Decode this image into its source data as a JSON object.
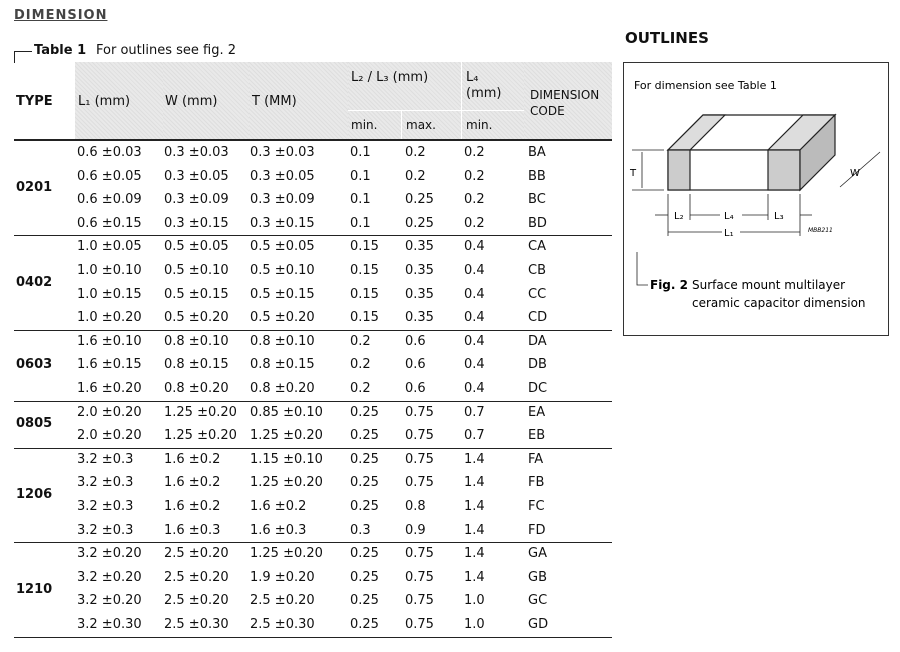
{
  "heading": "DIMENSION",
  "table": {
    "label": "Table 1",
    "caption": "For outlines see fig. 2",
    "header": {
      "type": "TYPE",
      "l1": "L₁ (mm)",
      "w": "W (mm)",
      "t": "T (MM)",
      "l2l3": "L₂ / L₃ (mm)",
      "l4": "L₄ (mm)",
      "code": "DIMENSION CODE",
      "min": "min.",
      "max": "max.",
      "l4min": "min."
    },
    "groups": [
      {
        "type": "0201",
        "rows": [
          [
            "0.6 ±0.03",
            "0.3 ±0.03",
            "0.3 ±0.03",
            "0.1",
            "0.2",
            "0.2",
            "BA"
          ],
          [
            "0.6 ±0.05",
            "0.3 ±0.05",
            "0.3 ±0.05",
            "0.1",
            "0.2",
            "0.2",
            "BB"
          ],
          [
            "0.6 ±0.09",
            "0.3 ±0.09",
            "0.3 ±0.09",
            "0.1",
            "0.25",
            "0.2",
            "BC"
          ],
          [
            "0.6 ±0.15",
            "0.3 ±0.15",
            "0.3 ±0.15",
            "0.1",
            "0.25",
            "0.2",
            "BD"
          ]
        ]
      },
      {
        "type": "0402",
        "rows": [
          [
            "1.0 ±0.05",
            "0.5 ±0.05",
            "0.5 ±0.05",
            "0.15",
            "0.35",
            "0.4",
            "CA"
          ],
          [
            "1.0 ±0.10",
            "0.5 ±0.10",
            "0.5 ±0.10",
            "0.15",
            "0.35",
            "0.4",
            "CB"
          ],
          [
            "1.0 ±0.15",
            "0.5 ±0.15",
            "0.5 ±0.15",
            "0.15",
            "0.35",
            "0.4",
            "CC"
          ],
          [
            "1.0 ±0.20",
            "0.5 ±0.20",
            "0.5 ±0.20",
            "0.15",
            "0.35",
            "0.4",
            "CD"
          ]
        ]
      },
      {
        "type": "0603",
        "rows": [
          [
            "1.6 ±0.10",
            "0.8 ±0.10",
            "0.8 ±0.10",
            "0.2",
            "0.6",
            "0.4",
            "DA"
          ],
          [
            "1.6 ±0.15",
            "0.8 ±0.15",
            "0.8 ±0.15",
            "0.2",
            "0.6",
            "0.4",
            "DB"
          ],
          [
            "1.6 ±0.20",
            "0.8 ±0.20",
            "0.8 ±0.20",
            "0.2",
            "0.6",
            "0.4",
            "DC"
          ]
        ]
      },
      {
        "type": "0805",
        "rows": [
          [
            "2.0 ±0.20",
            "1.25 ±0.20",
            "0.85 ±0.10",
            "0.25",
            "0.75",
            "0.7",
            "EA"
          ],
          [
            "2.0 ±0.20",
            "1.25 ±0.20",
            "1.25 ±0.20",
            "0.25",
            "0.75",
            "0.7",
            "EB"
          ]
        ]
      },
      {
        "type": "1206",
        "rows": [
          [
            "3.2 ±0.3",
            "1.6 ±0.2",
            "1.15 ±0.10",
            "0.25",
            "0.75",
            "1.4",
            "FA"
          ],
          [
            "3.2 ±0.3",
            "1.6 ±0.2",
            "1.25 ±0.20",
            "0.25",
            "0.75",
            "1.4",
            "FB"
          ],
          [
            "3.2 ±0.3",
            "1.6 ±0.2",
            "1.6 ±0.2",
            "0.25",
            "0.8",
            "1.4",
            "FC"
          ],
          [
            "3.2 ±0.3",
            "1.6 ±0.3",
            "1.6 ±0.3",
            "0.3",
            "0.9",
            "1.4",
            "FD"
          ]
        ]
      },
      {
        "type": "1210",
        "rows": [
          [
            "3.2 ±0.20",
            "2.5 ±0.20",
            "1.25 ±0.20",
            "0.25",
            "0.75",
            "1.4",
            "GA"
          ],
          [
            "3.2 ±0.20",
            "2.5 ±0.20",
            "1.9 ±0.20",
            "0.25",
            "0.75",
            "1.4",
            "GB"
          ],
          [
            "3.2 ±0.20",
            "2.5 ±0.20",
            "2.5 ±0.20",
            "0.25",
            "0.75",
            "1.0",
            "GC"
          ],
          [
            "3.2 ±0.30",
            "2.5 ±0.30",
            "2.5 ±0.30",
            "0.25",
            "0.75",
            "1.0",
            "GD"
          ]
        ]
      }
    ]
  },
  "outlines": {
    "title": "OUTLINES",
    "note": "For dimension see Table 1",
    "labels": {
      "t": "T",
      "w": "W",
      "l2": "L₂",
      "l4": "L₄",
      "l3": "L₃",
      "l1": "L₁",
      "code": "MBB211"
    },
    "figure": {
      "label": "Fig. 2",
      "caption": [
        "Surface mount multilayer",
        "ceramic capacitor dimension"
      ]
    }
  }
}
